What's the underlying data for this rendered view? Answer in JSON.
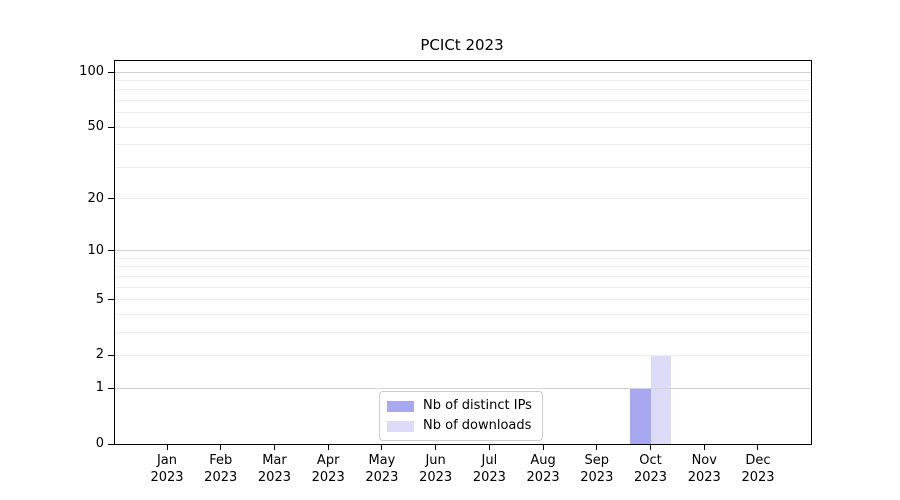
{
  "chart_data": {
    "type": "bar",
    "title": "PCICt 2023",
    "x_categories": [
      {
        "month": "Jan",
        "year": "2023"
      },
      {
        "month": "Feb",
        "year": "2023"
      },
      {
        "month": "Mar",
        "year": "2023"
      },
      {
        "month": "Apr",
        "year": "2023"
      },
      {
        "month": "May",
        "year": "2023"
      },
      {
        "month": "Jun",
        "year": "2023"
      },
      {
        "month": "Jul",
        "year": "2023"
      },
      {
        "month": "Aug",
        "year": "2023"
      },
      {
        "month": "Sep",
        "year": "2023"
      },
      {
        "month": "Oct",
        "year": "2023"
      },
      {
        "month": "Nov",
        "year": "2023"
      },
      {
        "month": "Dec",
        "year": "2023"
      }
    ],
    "series": [
      {
        "name": "Nb of distinct IPs",
        "color": "#a8a8f0",
        "values": [
          0,
          0,
          0,
          0,
          0,
          0,
          0,
          0,
          0,
          1,
          0,
          0
        ]
      },
      {
        "name": "Nb of downloads",
        "color": "#dcdcf8",
        "values": [
          0,
          0,
          0,
          0,
          0,
          0,
          0,
          0,
          0,
          2,
          0,
          0
        ]
      }
    ],
    "y_axis": {
      "scale": "log1p",
      "ylim": [
        0,
        100
      ],
      "ticks": [
        0,
        1,
        2,
        5,
        10,
        20,
        50,
        100
      ],
      "major_gridlines": [
        1,
        10,
        100
      ],
      "minor_gridlines": [
        2,
        3,
        4,
        5,
        6,
        7,
        8,
        9,
        20,
        30,
        40,
        50,
        60,
        70,
        80,
        90
      ],
      "major_grid_color": "#d2d2d2",
      "minor_grid_color": "#ececec"
    },
    "legend": {
      "position": "lower center"
    },
    "grid": true
  }
}
